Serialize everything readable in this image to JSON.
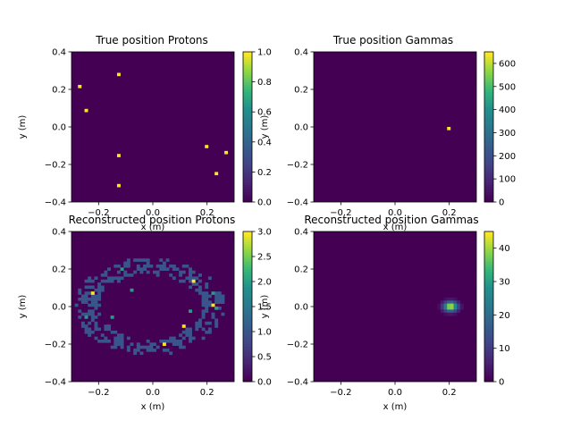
{
  "chart_data": [
    {
      "type": "heatmap",
      "title": "True position Protons",
      "xlabel": "x (m)",
      "ylabel": "y (m)",
      "xlim": [
        -0.3,
        0.3
      ],
      "ylim": [
        -0.4,
        0.4
      ],
      "xticks": [
        "-0.2",
        "0.0",
        "0.2"
      ],
      "yticks": [
        "-0.4",
        "-0.2",
        "0.0",
        "0.2",
        "0.4"
      ],
      "colorbar_range": [
        0,
        1
      ],
      "colorbar_ticks": [
        "0.0",
        "0.2",
        "0.4",
        "0.6",
        "0.8",
        "1.0"
      ],
      "colormap": "viridis",
      "points": [
        {
          "x": -0.27,
          "y": 0.215,
          "v": 1
        },
        {
          "x": -0.13,
          "y": 0.275,
          "v": 1
        },
        {
          "x": -0.25,
          "y": 0.09,
          "v": 1
        },
        {
          "x": -0.13,
          "y": -0.155,
          "v": 1
        },
        {
          "x": -0.13,
          "y": -0.31,
          "v": 1
        },
        {
          "x": 0.195,
          "y": -0.105,
          "v": 1
        },
        {
          "x": 0.265,
          "y": -0.135,
          "v": 1
        },
        {
          "x": 0.23,
          "y": -0.25,
          "v": 1
        }
      ]
    },
    {
      "type": "heatmap",
      "title": "True position Gammas",
      "xlabel": "x (m)",
      "ylabel": "y (m)",
      "xlim": [
        -0.3,
        0.3
      ],
      "ylim": [
        -0.4,
        0.4
      ],
      "xticks": [
        "-0.2",
        "0.0",
        "0.2"
      ],
      "yticks": [
        "-0.4",
        "-0.2",
        "0.0",
        "0.2",
        "0.4"
      ],
      "colorbar_range": [
        0,
        650
      ],
      "colorbar_ticks": [
        "0",
        "100",
        "200",
        "300",
        "400",
        "500",
        "600"
      ],
      "colormap": "viridis",
      "points": [
        {
          "x": 0.2,
          "y": 0.0,
          "v": 650
        }
      ]
    },
    {
      "type": "heatmap",
      "title": "Reconstructed position Protons",
      "xlabel": "x (m)",
      "ylabel": "y (m)",
      "xlim": [
        -0.3,
        0.3
      ],
      "ylim": [
        -0.4,
        0.4
      ],
      "xticks": [
        "-0.2",
        "0.0",
        "0.2"
      ],
      "yticks": [
        "-0.4",
        "-0.2",
        "0.0",
        "0.2",
        "0.4"
      ],
      "colorbar_range": [
        0,
        3
      ],
      "colorbar_ticks": [
        "0.0",
        "0.5",
        "1.0",
        "1.5",
        "2.0",
        "2.5",
        "3.0"
      ],
      "colormap": "viridis",
      "ring": {
        "center_x": -0.01,
        "center_y": 0.0,
        "radius_x": 0.24,
        "radius_y": 0.22
      },
      "hot_points": [
        {
          "x": -0.22,
          "y": 0.075,
          "v": 3
        },
        {
          "x": -0.12,
          "y": 0.195,
          "v": 2
        },
        {
          "x": -0.08,
          "y": 0.085,
          "v": 2
        },
        {
          "x": -0.15,
          "y": -0.055,
          "v": 2
        },
        {
          "x": 0.045,
          "y": -0.2,
          "v": 3
        },
        {
          "x": 0.11,
          "y": -0.105,
          "v": 3
        },
        {
          "x": 0.155,
          "y": 0.14,
          "v": 3
        },
        {
          "x": 0.22,
          "y": 0.015,
          "v": 3
        },
        {
          "x": 0.235,
          "y": -0.015,
          "v": 2
        },
        {
          "x": 0.14,
          "y": -0.03,
          "v": 2
        },
        {
          "x": -0.245,
          "y": -0.06,
          "v": 2
        },
        {
          "x": 0.22,
          "y": 0.08,
          "v": 2
        }
      ]
    },
    {
      "type": "heatmap",
      "title": "Reconstructed position Gammas",
      "xlabel": "x (m)",
      "ylabel": "y (m)",
      "xlim": [
        -0.3,
        0.3
      ],
      "ylim": [
        -0.4,
        0.4
      ],
      "xticks": [
        "-0.2",
        "0.0",
        "0.2"
      ],
      "yticks": [
        "-0.4",
        "-0.2",
        "0.0",
        "0.2",
        "0.4"
      ],
      "colorbar_range": [
        0,
        45
      ],
      "colorbar_ticks": [
        "0",
        "10",
        "20",
        "30",
        "40"
      ],
      "colormap": "viridis",
      "blob": {
        "center_x": 0.205,
        "center_y": 0.0,
        "sigma": 0.018,
        "peak": 45
      }
    }
  ]
}
